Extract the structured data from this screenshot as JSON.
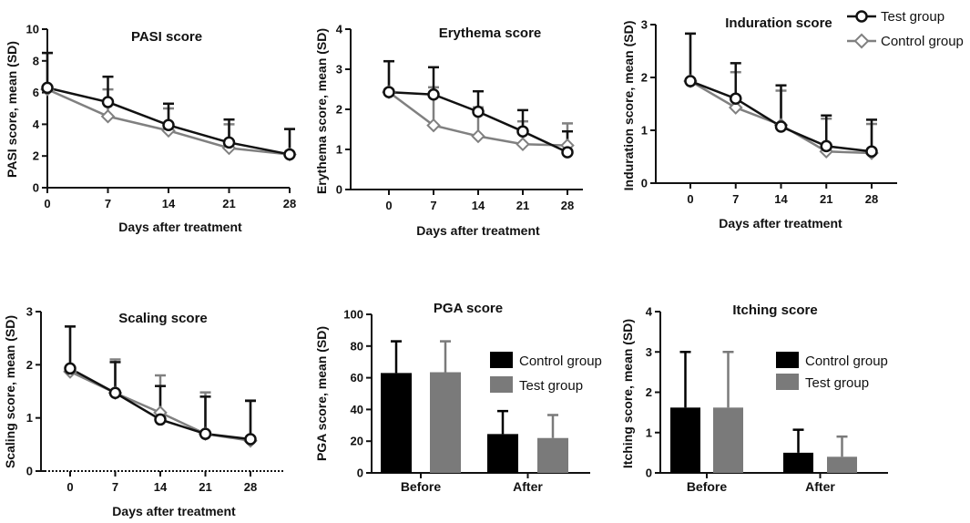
{
  "colors": {
    "test": "#111111",
    "control": "#808080",
    "axis": "#111111"
  },
  "legend_line": {
    "test": "Test group",
    "control": "Control group"
  },
  "legend_bar": {
    "control": "Control group",
    "test": "Test group"
  },
  "chart_data": [
    {
      "type": "line",
      "title": "PASI score",
      "ylabel": "PASI score, mean (SD)",
      "xlabel": "Days after treatment",
      "x": [
        0,
        7,
        14,
        21,
        28
      ],
      "ylim": [
        0,
        10
      ],
      "yticks": [
        0,
        2,
        4,
        6,
        8,
        10
      ],
      "series": [
        {
          "name": "Test group",
          "values": [
            6.3,
            5.4,
            3.95,
            2.85,
            2.1
          ],
          "sd_upper": [
            8.5,
            7.0,
            5.3,
            4.3,
            3.7
          ]
        },
        {
          "name": "Control group",
          "values": [
            6.2,
            4.5,
            3.6,
            2.5,
            2.1
          ],
          "sd_upper": [
            8.5,
            6.2,
            5.0,
            4.0,
            3.7
          ]
        }
      ]
    },
    {
      "type": "line",
      "title": "Erythema score",
      "ylabel": "Erythema score, mean (SD)",
      "xlabel": "Days after treatment",
      "x": [
        0,
        7,
        14,
        21,
        28
      ],
      "ylim": [
        0,
        4
      ],
      "yticks": [
        0,
        1,
        2,
        3,
        4
      ],
      "series": [
        {
          "name": "Test group",
          "values": [
            2.43,
            2.37,
            1.94,
            1.45,
            0.93
          ],
          "sd_upper": [
            3.2,
            3.05,
            2.45,
            1.98,
            1.45
          ]
        },
        {
          "name": "Control group",
          "values": [
            2.43,
            1.6,
            1.33,
            1.13,
            1.1
          ],
          "sd_upper": [
            3.2,
            2.55,
            2.05,
            1.7,
            1.65
          ]
        }
      ]
    },
    {
      "type": "line",
      "title": "Induration score",
      "ylabel": "Induration score, mean (SD)",
      "xlabel": "Days after treatment",
      "x": [
        0,
        7,
        14,
        21,
        28
      ],
      "ylim": [
        0,
        3
      ],
      "yticks": [
        0,
        1,
        2,
        3
      ],
      "series": [
        {
          "name": "Test group",
          "values": [
            1.93,
            1.6,
            1.07,
            0.7,
            0.6
          ],
          "sd_upper": [
            2.83,
            2.27,
            1.85,
            1.28,
            1.2
          ]
        },
        {
          "name": "Control group",
          "values": [
            1.93,
            1.43,
            1.1,
            0.6,
            0.57
          ],
          "sd_upper": [
            2.83,
            2.1,
            1.75,
            1.22,
            1.12
          ]
        }
      ]
    },
    {
      "type": "line",
      "title": "Scaling score",
      "ylabel": "Scaling score, mean (SD)",
      "xlabel": "Days after treatment",
      "x": [
        0,
        7,
        14,
        21,
        28
      ],
      "ylim": [
        0,
        3
      ],
      "yticks": [
        0,
        1,
        2,
        3
      ],
      "series": [
        {
          "name": "Test group",
          "values": [
            1.93,
            1.47,
            0.97,
            0.7,
            0.6
          ],
          "sd_upper": [
            2.72,
            2.05,
            1.6,
            1.4,
            1.32
          ]
        },
        {
          "name": "Control group",
          "values": [
            1.87,
            1.47,
            1.1,
            0.7,
            0.57
          ],
          "sd_upper": [
            2.72,
            2.1,
            1.8,
            1.48,
            1.33
          ]
        }
      ]
    },
    {
      "type": "bar",
      "title": "PGA score",
      "ylabel": "PGA score, mean (SD)",
      "categories": [
        "Before",
        "After"
      ],
      "ylim": [
        0,
        100
      ],
      "yticks": [
        0,
        20,
        40,
        60,
        80,
        100
      ],
      "series": [
        {
          "name": "Control group",
          "values": [
            63,
            24.5
          ],
          "sd_upper": [
            83,
            39
          ]
        },
        {
          "name": "Test group",
          "values": [
            63.5,
            22
          ],
          "sd_upper": [
            83,
            36.5
          ]
        }
      ]
    },
    {
      "type": "bar",
      "title": "Itching score",
      "ylabel": "Itching score, mean (SD)",
      "categories": [
        "Before",
        "After"
      ],
      "ylim": [
        0,
        4
      ],
      "yticks": [
        0,
        1,
        2,
        3,
        4
      ],
      "series": [
        {
          "name": "Control group",
          "values": [
            1.62,
            0.5
          ],
          "sd_upper": [
            3.0,
            1.07
          ]
        },
        {
          "name": "Test group",
          "values": [
            1.62,
            0.4
          ],
          "sd_upper": [
            3.0,
            0.9
          ]
        }
      ]
    }
  ]
}
